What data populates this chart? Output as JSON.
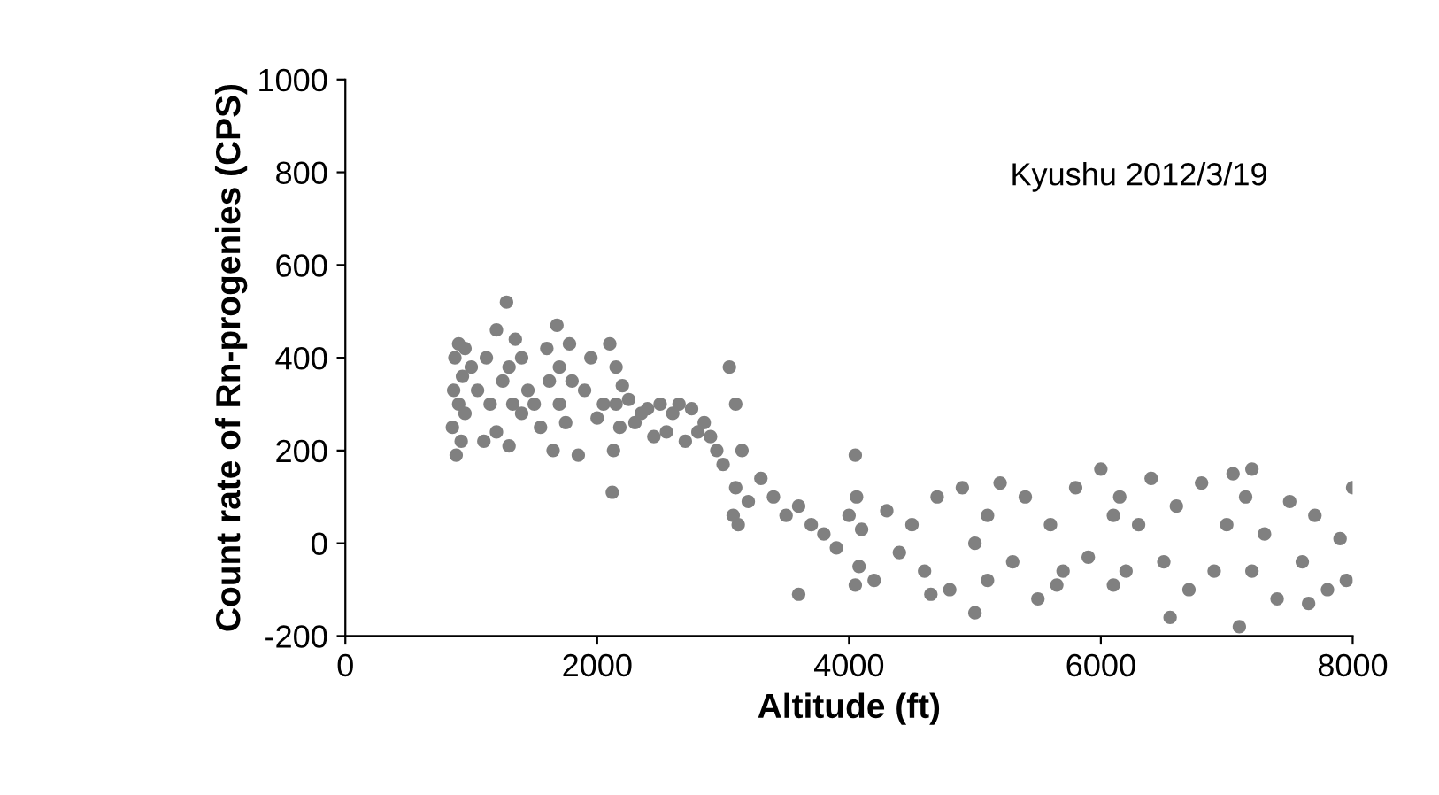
{
  "chart_data": {
    "type": "scatter",
    "ylabel": "Count rate of Rn-progenies (CPS)",
    "xlabel": "Altitude (ft)",
    "annotations": [
      "Kyushu 2012/3/19"
    ],
    "xlim": [
      0,
      8000
    ],
    "ylim": [
      -200,
      1000
    ],
    "xticks": [
      0,
      2000,
      4000,
      6000,
      8000
    ],
    "yticks": [
      -200,
      0,
      200,
      400,
      600,
      800,
      1000
    ],
    "grid": false,
    "marker": "circle",
    "series": [
      {
        "color": "#808080",
        "x": [
          850,
          860,
          870,
          880,
          900,
          900,
          920,
          930,
          950,
          950,
          1000,
          1050,
          1100,
          1120,
          1150,
          1200,
          1200,
          1250,
          1280,
          1300,
          1300,
          1330,
          1350,
          1400,
          1400,
          1450,
          1500,
          1550,
          1600,
          1620,
          1650,
          1680,
          1700,
          1700,
          1750,
          1780,
          1800,
          1850,
          1900,
          1950,
          2000,
          2050,
          2100,
          2120,
          2130,
          2150,
          2150,
          2180,
          2200,
          2250,
          2300,
          2350,
          2400,
          2450,
          2500,
          2550,
          2600,
          2650,
          2700,
          2750,
          2800,
          2850,
          2900,
          2950,
          3000,
          3050,
          3080,
          3100,
          3100,
          3120,
          3150,
          3200,
          3300,
          3400,
          3500,
          3600,
          3700,
          3800,
          3900,
          4000,
          4050,
          4050,
          4060,
          4080,
          4100,
          4200,
          4300,
          4400,
          4500,
          4600,
          4700,
          4800,
          4900,
          5000,
          5000,
          5100,
          5100,
          5200,
          5300,
          5400,
          5500,
          5600,
          5700,
          5800,
          5900,
          6000,
          6100,
          6100,
          6150,
          6200,
          6300,
          6400,
          6500,
          6600,
          6700,
          6800,
          6900,
          7000,
          7050,
          7100,
          7150,
          7200,
          7200,
          7300,
          7400,
          7500,
          7600,
          7700,
          7800,
          7900,
          8000,
          7950,
          7650,
          6550,
          5650,
          4650,
          3600
        ],
        "values": [
          250,
          330,
          400,
          190,
          430,
          300,
          220,
          360,
          420,
          280,
          380,
          330,
          220,
          400,
          300,
          460,
          240,
          350,
          520,
          380,
          210,
          300,
          440,
          280,
          400,
          330,
          300,
          250,
          420,
          350,
          200,
          470,
          300,
          380,
          260,
          430,
          350,
          190,
          330,
          400,
          270,
          300,
          430,
          110,
          200,
          380,
          300,
          250,
          340,
          310,
          260,
          280,
          290,
          230,
          300,
          240,
          280,
          300,
          220,
          290,
          240,
          260,
          230,
          200,
          170,
          380,
          60,
          300,
          120,
          40,
          200,
          90,
          140,
          100,
          60,
          80,
          40,
          20,
          -10,
          60,
          190,
          -90,
          100,
          -50,
          30,
          -80,
          70,
          -20,
          40,
          -60,
          100,
          -100,
          120,
          0,
          -150,
          60,
          -80,
          130,
          -40,
          100,
          -120,
          40,
          -60,
          120,
          -30,
          160,
          -90,
          60,
          100,
          -60,
          40,
          140,
          -40,
          80,
          -100,
          130,
          -60,
          40,
          150,
          -180,
          100,
          -60,
          160,
          20,
          -120,
          90,
          -40,
          60,
          -100,
          10,
          120,
          -80,
          -130,
          -160,
          -90,
          -110,
          -110
        ]
      }
    ]
  }
}
